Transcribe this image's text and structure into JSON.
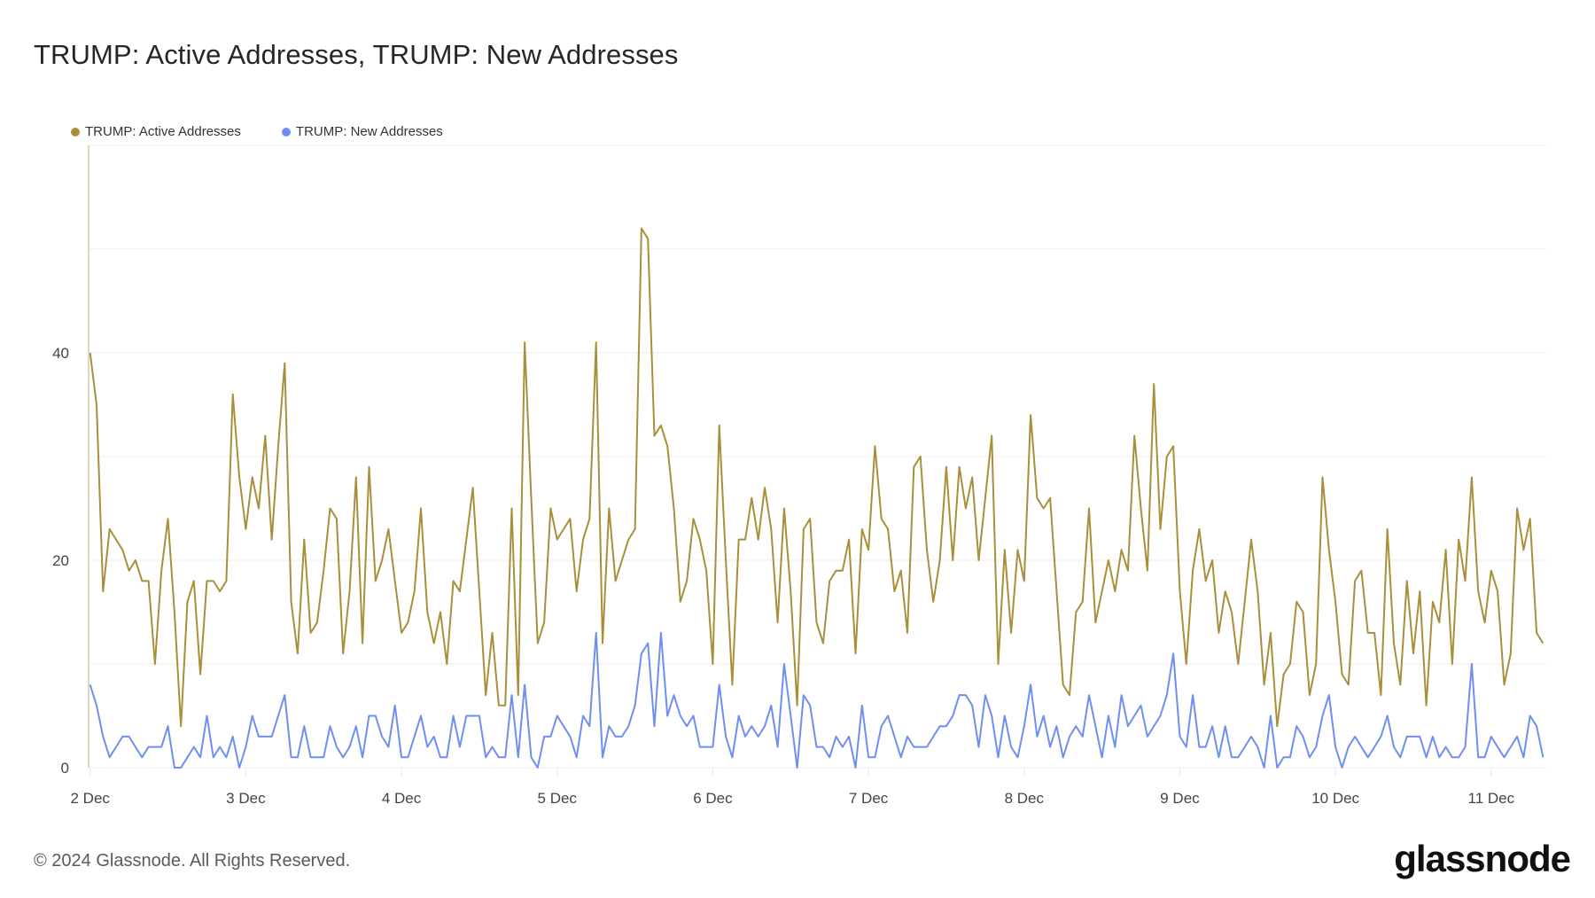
{
  "title": "TRUMP: Active Addresses, TRUMP: New Addresses",
  "footer": "© 2024 Glassnode. All Rights Reserved.",
  "logo": "glassnode",
  "chart_data": {
    "type": "line",
    "title": "TRUMP: Active Addresses, TRUMP: New Addresses",
    "resolution": "1h",
    "x_ticks": [
      "2 Dec",
      "3 Dec",
      "4 Dec",
      "5 Dec",
      "6 Dec",
      "7 Dec",
      "8 Dec",
      "9 Dec",
      "10 Dec",
      "11 Dec"
    ],
    "y_ticks": [
      0,
      20,
      40
    ],
    "ylim": [
      0,
      60
    ],
    "grid": true,
    "legend": "top-left",
    "series": [
      {
        "name": "TRUMP: Active Addresses",
        "color": "#a88f3a",
        "values": [
          40,
          35,
          17,
          23,
          22,
          21,
          19,
          20,
          18,
          18,
          10,
          19,
          24,
          15,
          4,
          16,
          18,
          9,
          18,
          18,
          17,
          18,
          36,
          28,
          23,
          28,
          25,
          32,
          22,
          31,
          39,
          16,
          11,
          22,
          13,
          14,
          19,
          25,
          24,
          11,
          17,
          28,
          12,
          29,
          18,
          20,
          23,
          18,
          13,
          14,
          17,
          25,
          15,
          12,
          15,
          10,
          18,
          17,
          22,
          27,
          17,
          7,
          13,
          6,
          6,
          25,
          7,
          41,
          26,
          12,
          14,
          25,
          22,
          23,
          24,
          17,
          22,
          24,
          41,
          12,
          25,
          18,
          20,
          22,
          23,
          52,
          51,
          32,
          33,
          31,
          25,
          16,
          18,
          24,
          22,
          19,
          10,
          33,
          20,
          8,
          22,
          22,
          26,
          22,
          27,
          23,
          14,
          25,
          17,
          6,
          23,
          24,
          14,
          12,
          18,
          19,
          19,
          22,
          11,
          23,
          21,
          31,
          24,
          23,
          17,
          19,
          13,
          29,
          30,
          21,
          16,
          20,
          29,
          20,
          29,
          25,
          28,
          20,
          26,
          32,
          10,
          21,
          13,
          21,
          18,
          34,
          26,
          25,
          26,
          17,
          8,
          7,
          15,
          16,
          25,
          14,
          17,
          20,
          17,
          21,
          19,
          32,
          25,
          19,
          37,
          23,
          30,
          31,
          17,
          10,
          19,
          23,
          18,
          20,
          13,
          17,
          15,
          10,
          16,
          22,
          17,
          8,
          13,
          4,
          9,
          10,
          16,
          15,
          7,
          10,
          28,
          21,
          16,
          9,
          8,
          18,
          19,
          13,
          13,
          7,
          23,
          12,
          8,
          18,
          11,
          17,
          6,
          16,
          14,
          21,
          10,
          22,
          18,
          28,
          17,
          14,
          19,
          17,
          8,
          11,
          25,
          21,
          24,
          13,
          12
        ]
      },
      {
        "name": "TRUMP: New Addresses",
        "color": "#6f8ef2",
        "values": [
          8,
          6,
          3,
          1,
          2,
          3,
          3,
          2,
          1,
          2,
          2,
          2,
          4,
          0,
          0,
          1,
          2,
          1,
          5,
          1,
          2,
          1,
          3,
          0,
          2,
          5,
          3,
          3,
          3,
          5,
          7,
          1,
          1,
          4,
          1,
          1,
          1,
          4,
          2,
          1,
          2,
          4,
          1,
          5,
          5,
          3,
          2,
          6,
          1,
          1,
          3,
          5,
          2,
          3,
          1,
          1,
          5,
          2,
          5,
          5,
          5,
          1,
          2,
          1,
          1,
          7,
          1,
          8,
          1,
          0,
          3,
          3,
          5,
          4,
          3,
          1,
          5,
          4,
          13,
          1,
          4,
          3,
          3,
          4,
          6,
          11,
          12,
          4,
          13,
          5,
          7,
          5,
          4,
          5,
          2,
          2,
          2,
          8,
          3,
          1,
          5,
          3,
          4,
          3,
          4,
          6,
          2,
          10,
          5,
          0,
          7,
          6,
          2,
          2,
          1,
          3,
          2,
          3,
          0,
          6,
          1,
          1,
          4,
          5,
          3,
          1,
          3,
          2,
          2,
          2,
          3,
          4,
          4,
          5,
          7,
          7,
          6,
          2,
          7,
          5,
          1,
          5,
          2,
          1,
          4,
          8,
          3,
          5,
          2,
          4,
          1,
          3,
          4,
          3,
          7,
          4,
          1,
          5,
          2,
          7,
          4,
          5,
          6,
          3,
          4,
          5,
          7,
          11,
          3,
          2,
          7,
          2,
          2,
          4,
          1,
          4,
          1,
          1,
          2,
          3,
          2,
          0,
          5,
          0,
          1,
          1,
          4,
          3,
          1,
          2,
          5,
          7,
          2,
          0,
          2,
          3,
          2,
          1,
          2,
          3,
          5,
          2,
          1,
          3,
          3,
          3,
          1,
          3,
          1,
          2,
          1,
          1,
          2,
          10,
          1,
          1,
          3,
          2,
          1,
          2,
          3,
          1,
          5,
          4,
          1
        ]
      }
    ]
  }
}
